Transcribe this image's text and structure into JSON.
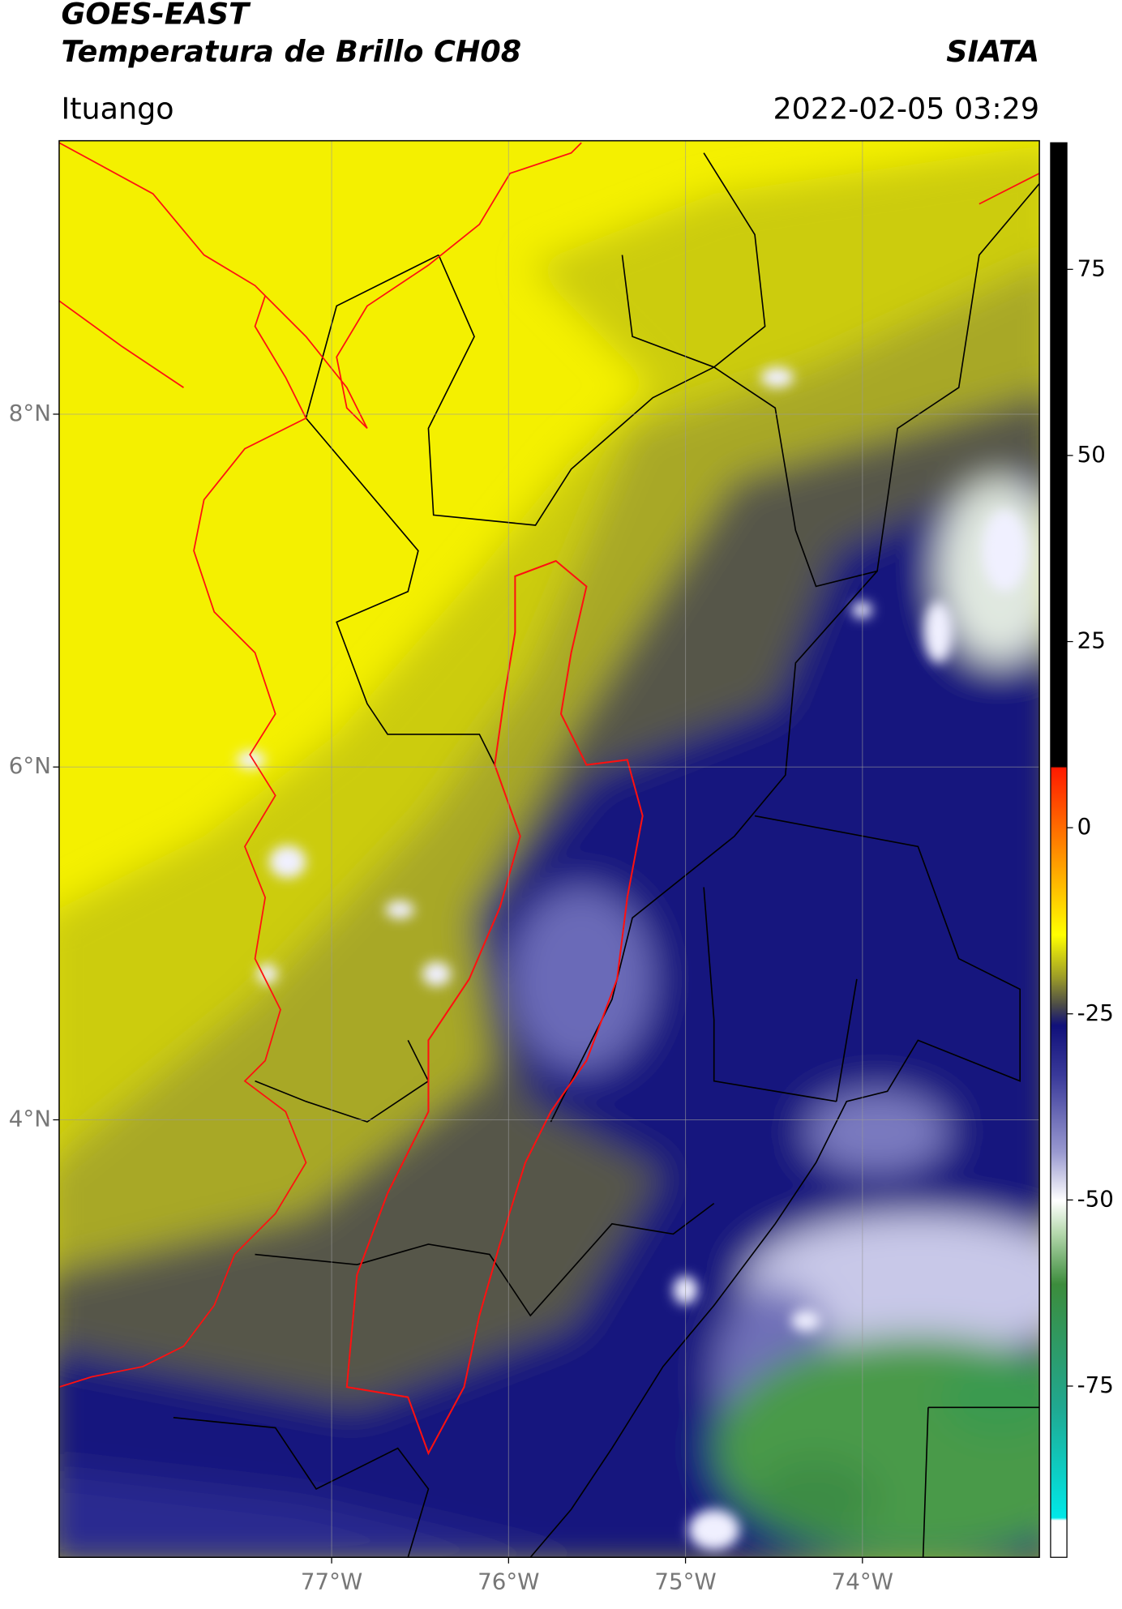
{
  "header": {
    "title": "GOES-EAST",
    "subtitle": "Temperatura de Brillo CH08",
    "source": "SIATA",
    "region": "Ituango",
    "timestamp": "2022-02-05 03:29"
  },
  "map": {
    "lon_lim": [
      -78.54,
      -73.0
    ],
    "lat_lim": [
      1.52,
      9.55
    ],
    "lon_ticks": [
      {
        "value": -77,
        "label": "77°W"
      },
      {
        "value": -76,
        "label": "76°W"
      },
      {
        "value": -75,
        "label": "75°W"
      },
      {
        "value": -74,
        "label": "74°W"
      }
    ],
    "lat_ticks": [
      {
        "value": 8,
        "label": "8°N"
      },
      {
        "value": 6,
        "label": "6°N"
      },
      {
        "value": 4,
        "label": "4°N"
      }
    ],
    "grid": true
  },
  "colorbar": {
    "lim": [
      -98,
      92
    ],
    "ticks": [
      75,
      50,
      25,
      0,
      -25,
      -50,
      -75
    ]
  }
}
